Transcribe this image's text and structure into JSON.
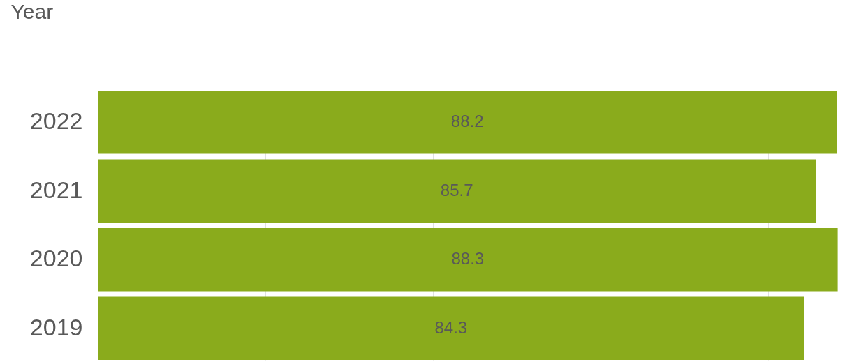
{
  "chart_data": {
    "type": "bar",
    "orientation": "horizontal",
    "ylabel": "Year",
    "categories": [
      "2022",
      "2021",
      "2020",
      "2019"
    ],
    "values": [
      88.2,
      85.7,
      88.3,
      84.3
    ],
    "color": "#8aab1c",
    "xticks": [
      {
        "value": 0,
        "label": null
      },
      {
        "value": 20,
        "label": null
      },
      {
        "value": 40,
        "label": null
      },
      {
        "value": 60,
        "label": null
      },
      {
        "value": 80,
        "label": null
      }
    ],
    "grid": "x",
    "data_labels": true
  }
}
